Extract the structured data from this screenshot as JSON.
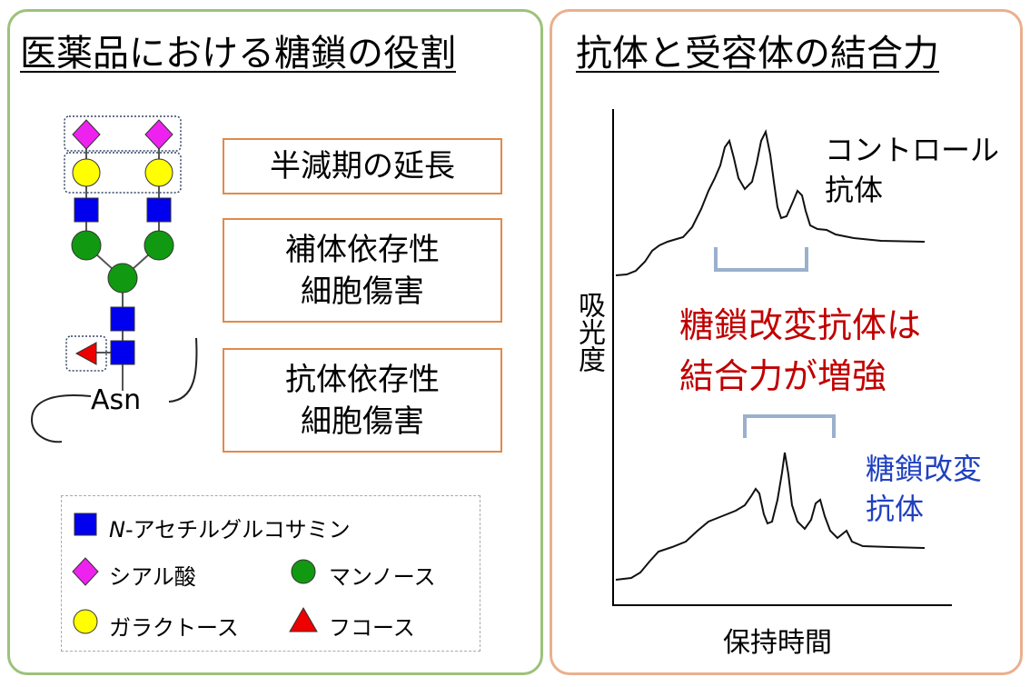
{
  "left_panel": {
    "title": "医薬品における糖鎖の役割",
    "asn_label": "Asn",
    "roles": [
      {
        "line1": "半減期の延長",
        "line2": ""
      },
      {
        "line1": "補体依存性",
        "line2": "細胞傷害"
      },
      {
        "line1": "抗体依存性",
        "line2": "細胞傷害"
      }
    ],
    "legend": {
      "glcnac_italic": "N",
      "glcnac_rest": "-アセチルグルコサミン",
      "sialic": "シアル酸",
      "mannose": "マンノース",
      "galactose": "ガラクトース",
      "fucose": "フコース"
    }
  },
  "right_panel": {
    "title": "抗体と受容体の結合力",
    "ylabel": "吸光度",
    "xlabel": "保持時間",
    "control_line1": "コントロール",
    "control_line2": "抗体",
    "modified_line1": "糖鎖改変",
    "modified_line2": "抗体",
    "conclusion_line1": "糖鎖改変抗体は",
    "conclusion_line2": "結合力が増強"
  },
  "colors": {
    "glcnac": "#0000ee",
    "sialic": "#ee22ee",
    "mannose": "#119911",
    "galactose": "#ffff00",
    "fucose": "#ee0000",
    "conclusion": "#c00000",
    "modified_label": "#2040c0"
  }
}
